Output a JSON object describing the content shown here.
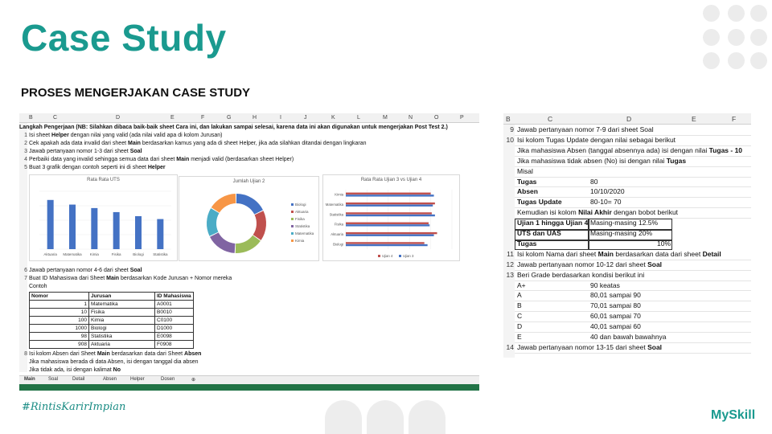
{
  "slide": {
    "title": "Case Study",
    "subtitle": "PROSES MENGERJAKAN CASE STUDY",
    "hashtag": "#RintisKarirImpian",
    "logo": "MySkill",
    "accent": "#1a9a8f"
  },
  "left_sheet": {
    "columns": [
      "B",
      "C",
      "D",
      "E",
      "F",
      "G",
      "H",
      "I",
      "J",
      "K",
      "L",
      "M",
      "N",
      "O",
      "P"
    ],
    "heading": "Langkah Pengerjaan (NB: Silahkan dibaca baik-baik sheet Cara ini, dan lakukan sampai selesai, karena data ini akan digunakan untuk mengerjakan Post Test 2.)",
    "steps": [
      {
        "n": "1",
        "pre": "Isi sheet ",
        "bold": "Helper",
        "post": " dengan nilai yang valid (ada nilai valid apa di kolom Jurusan)"
      },
      {
        "n": "2",
        "pre": "Cek apakah ada data invalid dari sheet ",
        "bold": "Main",
        "post": " berdasarkan kamus yang ada di sheet Helper, jika ada silahkan ditandai dengan lingkaran"
      },
      {
        "n": "3",
        "pre": "Jawab pertanyaan nomor 1-3 dari sheet ",
        "bold": "Soal",
        "post": ""
      },
      {
        "n": "4",
        "pre": "Perbaiki data yang invalid sehingga semua data dari sheet ",
        "bold": "Main",
        "post": " menjadi valid (berdasarkan sheet Helper)"
      },
      {
        "n": "5",
        "pre": "Buat 3 grafik dengan contoh seperti ini di sheet ",
        "bold": "Helper",
        "post": ""
      }
    ],
    "steps_after": [
      {
        "n": "6",
        "pre": "Jawab pertanyaan nomor 4-6 dari sheet ",
        "bold": "Soal",
        "post": ""
      },
      {
        "n": "7",
        "pre": "Buat ID Mahasiswa dari Sheet ",
        "bold": "Main",
        "post": " berdasarkan Kode Jurusan + Nomor mereka"
      }
    ],
    "contoh": "Contoh",
    "table": {
      "headers": [
        "Nomor",
        "Jurusan",
        "ID Mahasiswa"
      ],
      "rows": [
        [
          "1",
          "Matematika",
          "A0001"
        ],
        [
          "10",
          "Fisika",
          "B0010"
        ],
        [
          "100",
          "Kimia",
          "C0100"
        ],
        [
          "1000",
          "Biologi",
          "D1000"
        ],
        [
          "98",
          "Statistika",
          "E0098"
        ],
        [
          "908",
          "Aktuaria",
          "F0908"
        ]
      ]
    },
    "step8": {
      "n": "8",
      "pre": "Isi kolom Absen dari Sheet ",
      "bold": "Main",
      "mid": " berdasarkan data dari Sheet ",
      "bold2": "Absen"
    },
    "step8_lines": [
      "Jika mahasiswa berada di data Absen, isi dengan tanggal dia absen",
      "Jika tidak ada, isi dengan kalimat "
    ],
    "step8_no": "No",
    "tabs": [
      "Main",
      "Soal",
      "Detail",
      "Absen",
      "Helper",
      "Dosen"
    ]
  },
  "chart_data": [
    {
      "type": "bar",
      "title": "Rata Rata UTS",
      "categories": [
        "Aktuaria",
        "Matematika",
        "Kimia",
        "Fisika",
        "Biologi",
        "Statistika"
      ],
      "values": [
        85,
        77,
        71,
        64,
        57,
        52
      ],
      "ylim": [
        0,
        100
      ],
      "color": "#4472c4"
    },
    {
      "type": "pie",
      "title": "Jumlah Ujian 2",
      "donut": true,
      "labels": [
        "Biologi",
        "Aktuaria",
        "Fisika",
        "Statistika",
        "Matematika",
        "Kimia"
      ],
      "values": [
        18,
        17,
        16,
        17,
        16,
        16
      ],
      "colors": [
        "#4472c4",
        "#c0504d",
        "#9bbb59",
        "#8064a2",
        "#4bacc6",
        "#f79646"
      ]
    },
    {
      "type": "bar",
      "orientation": "horizontal",
      "title": "Rata Rata Ujian 3 vs Ujian 4",
      "categories": [
        "Kimia",
        "Matematika",
        "Statistika",
        "Fisika",
        "Aktuaria",
        "Biologi"
      ],
      "series": [
        {
          "name": "Ujian 4",
          "values": [
            80,
            84,
            81,
            78,
            86,
            74
          ],
          "color": "#c0504d"
        },
        {
          "name": "Ujian 3",
          "values": [
            83,
            82,
            84,
            79,
            83,
            77
          ],
          "color": "#4472c4"
        }
      ],
      "xlim": [
        0,
        100
      ]
    }
  ],
  "right_sheet": {
    "columns": [
      "B",
      "C",
      "D",
      "E",
      "F"
    ],
    "rows": [
      {
        "n": "9",
        "text": "Jawab pertanyaan nomor 7-9 dari sheet Soal"
      },
      {
        "n": "10",
        "text": "Isi kolom Tugas Update dengan nilai sebagai berikut"
      },
      {
        "n": "",
        "text": "Jika mahasiswa Absen (tanggal absennya ada) isi dengan nilai ",
        "bold": "Tugas - 10"
      },
      {
        "n": "",
        "text": "Jika mahasiswa tidak absen (No) isi dengan nilai ",
        "bold": "Tugas"
      },
      {
        "n": "",
        "text": "Misal"
      }
    ],
    "example": [
      {
        "label": "Tugas",
        "value": "80"
      },
      {
        "label": "Absen",
        "value": "10/10/2020"
      },
      {
        "label": "Tugas Update",
        "value": "80-10= 70"
      }
    ],
    "bobot_intro": "Kemudian isi kolom ",
    "bobot_bold": "Nilai Akhir",
    "bobot_post": " dengan bobot berikut",
    "bobot": [
      {
        "label": "Ujian 1 hingga Ujian 4",
        "value": "Masing-masing 12.5%"
      },
      {
        "label": "UTS dan UAS",
        "value": "Masing-masing 20%"
      },
      {
        "label": "Tugas",
        "value": "10%"
      }
    ],
    "row11": {
      "n": "11",
      "pre": "Isi kolom Nama dari sheet ",
      "bold": "Main",
      "mid": " berdasarkan data dari sheet ",
      "bold2": "Detail"
    },
    "row12": {
      "n": "12",
      "pre": "Jawab pertanyaan nomor 10-12 dari sheet ",
      "bold": "Soal"
    },
    "row13": {
      "n": "13",
      "text": "Beri Grade berdasarkan kondisi berikut ini"
    },
    "grades": [
      {
        "grade": "A+",
        "range": "90 keatas"
      },
      {
        "grade": "A",
        "range": "80,01 sampai 90"
      },
      {
        "grade": "B",
        "range": "70,01 sampai 80"
      },
      {
        "grade": "C",
        "range": "60,01 sampai 70"
      },
      {
        "grade": "D",
        "range": "40,01 sampai 60"
      },
      {
        "grade": "E",
        "range": "40 dan bawah bawahnya"
      }
    ],
    "row14": {
      "n": "14",
      "pre": "Jawab pertanyaan nomor 13-15 dari sheet ",
      "bold": "Soal"
    }
  }
}
